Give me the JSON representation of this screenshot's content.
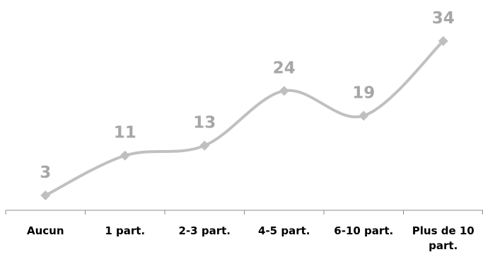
{
  "chart_data": {
    "type": "line",
    "categories": [
      [
        "Aucun"
      ],
      [
        "1 part."
      ],
      [
        "2-3 part."
      ],
      [
        "4-5 part."
      ],
      [
        "6-10 part."
      ],
      [
        "Plus de 10",
        "part."
      ]
    ],
    "values": [
      3,
      11,
      13,
      24,
      19,
      34
    ],
    "data_labels": [
      "3",
      "11",
      "13",
      "24",
      "19",
      "34"
    ],
    "title": "",
    "xlabel": "",
    "ylabel": "",
    "smooth": true,
    "grid": false,
    "legend": "none",
    "colors": {
      "line": "#c0c0c0",
      "marker": "#bfbfbf",
      "label": "#a6a6a6",
      "axis": "#8c8c8c",
      "tick_text": "#000000"
    }
  }
}
